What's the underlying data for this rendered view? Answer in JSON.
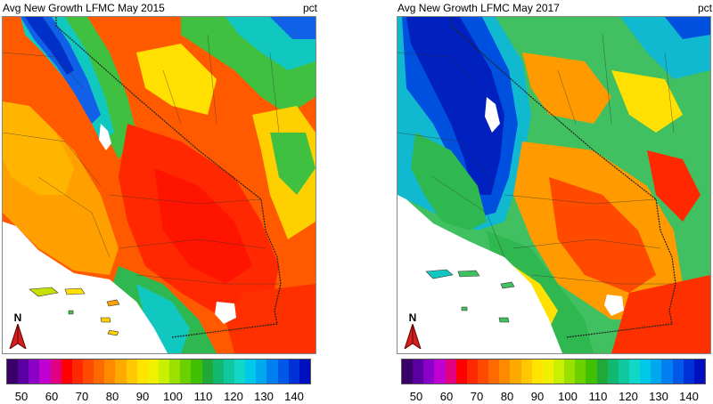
{
  "panels": [
    {
      "title": "Avg New Growth LFMC May 2015",
      "unit": "pct",
      "north_label": "N",
      "scheme": "dry"
    },
    {
      "title": "Avg New Growth LFMC May 2017",
      "unit": "pct",
      "north_label": "N",
      "scheme": "wet"
    }
  ],
  "legend": {
    "ticks": [
      "50",
      "60",
      "70",
      "80",
      "90",
      "100",
      "110",
      "120",
      "130",
      "140"
    ],
    "range": [
      45,
      145
    ],
    "colors": [
      "#3a0069",
      "#5a00a0",
      "#8a00c8",
      "#c000d0",
      "#e00080",
      "#ff0000",
      "#ff2800",
      "#ff4a00",
      "#ff6a00",
      "#ff8a00",
      "#ffaa00",
      "#ffc800",
      "#ffe400",
      "#f0f000",
      "#c8f000",
      "#9ae000",
      "#6ad000",
      "#40c000",
      "#20a838",
      "#10b870",
      "#10c8a0",
      "#10d8c8",
      "#00c8e8",
      "#00a8f0",
      "#0080f0",
      "#0058e8",
      "#0030d8",
      "#0010c0"
    ]
  },
  "map_colors": {
    "dry": {
      "base": "#ff5a00",
      "coast": "#ffb000",
      "mid": "#ffe000",
      "green": "#40c040",
      "teal": "#10c8c0",
      "blue": "#1060e8",
      "deep": "#0030c8"
    },
    "wet": {
      "base": "#ff9a00",
      "coast": "#40c060",
      "mid": "#ffe000",
      "green": "#30b850",
      "teal": "#10b8d0",
      "blue": "#0050e0",
      "deep": "#0020c0"
    }
  }
}
